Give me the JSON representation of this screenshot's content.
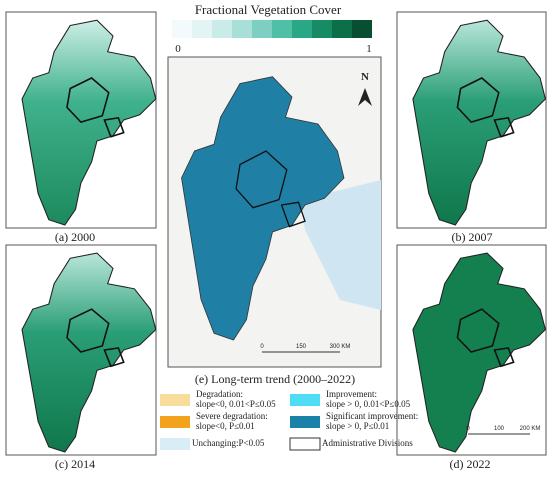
{
  "colorbar": {
    "title": "Fractional Vegetation Cover",
    "min_label": "0",
    "max_label": "1",
    "colors": [
      "#f3fafb",
      "#e2f4f4",
      "#c9ece8",
      "#a8e0d8",
      "#7dd0c1",
      "#4fbfa6",
      "#2aa784",
      "#178b63",
      "#0d6f48",
      "#074f30"
    ]
  },
  "panels": [
    {
      "caption": "(a) 2000"
    },
    {
      "caption": "(b) 2007"
    },
    {
      "caption": "(c) 2014"
    },
    {
      "caption": "(d) 2022"
    }
  ],
  "trend_panel": {
    "caption": "(e) Long-term trend (2000–2022)",
    "north": "N",
    "scale": [
      "0",
      "150",
      "300 KM"
    ]
  },
  "scale_d": [
    "0",
    "100",
    "200 KM"
  ],
  "legend": [
    {
      "lines": [
        "Degradation:",
        "slope<0, 0.01<P≤0.05"
      ],
      "color": "#f9dd9a"
    },
    {
      "lines": [
        "Improvement:",
        "slope > 0, 0.01<P≤0.05"
      ],
      "color": "#4fdcf5"
    },
    {
      "lines": [
        "Severe degradation:",
        "slope<0, P≤0.01"
      ],
      "color": "#f2a21c"
    },
    {
      "lines": [
        "Significant improvement:",
        "slope > 0, P≤0.01"
      ],
      "color": "#1a82a8"
    },
    {
      "lines": [
        "Unchanging:P<0.05"
      ],
      "color": "#d8edf5"
    },
    {
      "lines": [
        "Administrative Divisions"
      ],
      "color": "#ffffff"
    }
  ]
}
